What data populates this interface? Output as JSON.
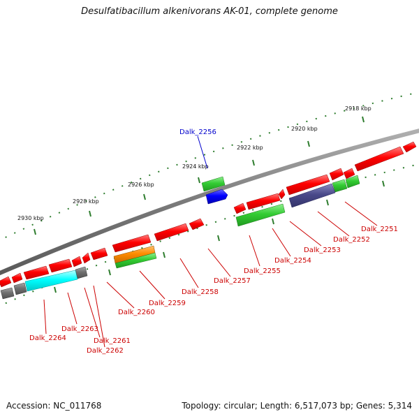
{
  "title": "Desulfatibacillum alkenivorans AK-01, complete genome",
  "footer": {
    "accession": "Accession: NC_011768",
    "topology": "Topology: circular; Length: 6,517,073 bp; Genes: 5,314"
  },
  "colors": {
    "backbone": "#7a7a7a",
    "tick": "#2e7d2e",
    "gene_red": "#ff0000",
    "gene_green": "#33cc33",
    "gene_blue": "#0000ff",
    "gene_cyan": "#00ffff",
    "gene_orange": "#ff8c00",
    "gene_slate": "#4a4a8a",
    "gene_gray": "#707070",
    "label_red": "#cc0000",
    "label_blue": "#0000cc"
  },
  "kbp_labels": [
    "2918 kbp",
    "2920 kbp",
    "2922 kbp",
    "2924 kbp",
    "2926 kbp",
    "2928 kbp",
    "2930 kbp"
  ],
  "gene_labels": [
    "Dalk_2251",
    "Dalk_2252",
    "Dalk_2253",
    "Dalk_2254",
    "Dalk_2255",
    "Dalk_2256",
    "Dalk_2257",
    "Dalk_2258",
    "Dalk_2259",
    "Dalk_2260",
    "Dalk_2261",
    "Dalk_2262",
    "Dalk_2263",
    "Dalk_2264"
  ]
}
